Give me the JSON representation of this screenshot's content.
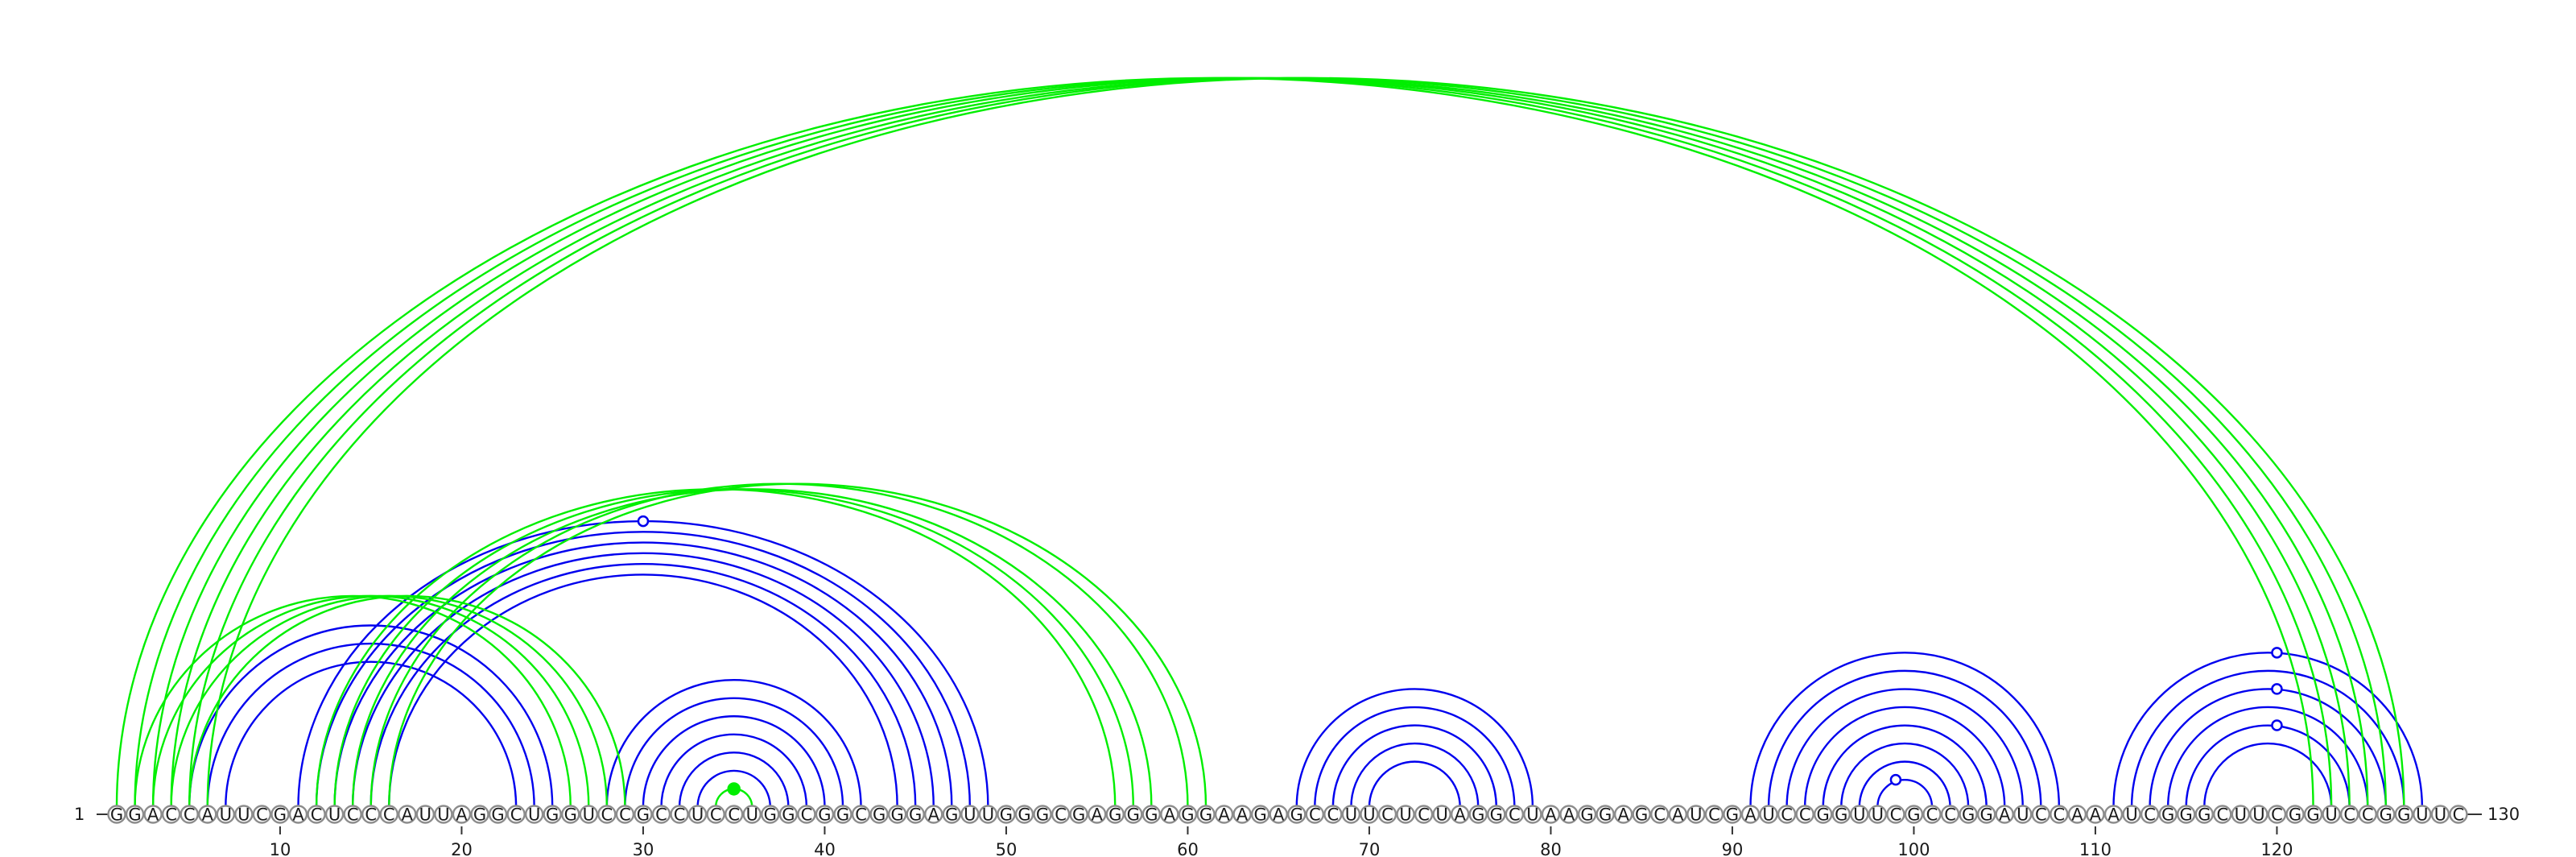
{
  "sequence": "GGACCAUUCGACUCCCAUUAGGCUGGUCCGCCUCCUGGCGGCGGGAGUUGGGCGAGGGAGGAAGAGCCUUCUCUAGGCUAAGGAGCAUCGAUCCGGUUCGCCGGAUCCAAAUCGGGCUUCGGUCCGGUUC",
  "start_label": "1",
  "end_label": "130",
  "ticks": [
    10,
    20,
    30,
    40,
    50,
    60,
    70,
    80,
    90,
    100,
    110,
    120
  ],
  "colors": {
    "blue_pairs": "#0000ee",
    "green_pairs": "#00ee00",
    "circle_stroke": "#8c8c8c"
  },
  "pairs": {
    "green": [
      [
        1,
        122
      ],
      [
        2,
        123
      ],
      [
        3,
        124
      ],
      [
        4,
        125
      ],
      [
        5,
        126
      ],
      [
        6,
        127
      ],
      [
        2,
        26
      ],
      [
        3,
        27
      ],
      [
        4,
        28
      ],
      [
        5,
        29
      ],
      [
        12,
        56
      ],
      [
        13,
        57
      ],
      [
        14,
        58
      ],
      [
        15,
        60
      ],
      [
        16,
        61
      ],
      [
        34,
        36
      ]
    ],
    "blue": [
      [
        5,
        25
      ],
      [
        6,
        24
      ],
      [
        7,
        23
      ],
      [
        11,
        49
      ],
      [
        12,
        48
      ],
      [
        13,
        47
      ],
      [
        14,
        46
      ],
      [
        15,
        45
      ],
      [
        16,
        44
      ],
      [
        28,
        42
      ],
      [
        29,
        41
      ],
      [
        30,
        40
      ],
      [
        31,
        39
      ],
      [
        32,
        38
      ],
      [
        33,
        37
      ],
      [
        66,
        79
      ],
      [
        67,
        78
      ],
      [
        68,
        77
      ],
      [
        69,
        76
      ],
      [
        70,
        75
      ],
      [
        91,
        108
      ],
      [
        92,
        107
      ],
      [
        93,
        106
      ],
      [
        94,
        105
      ],
      [
        95,
        104
      ],
      [
        96,
        103
      ],
      [
        97,
        102
      ],
      [
        98,
        101
      ],
      [
        111,
        128
      ],
      [
        112,
        127
      ],
      [
        113,
        126
      ],
      [
        114,
        125
      ],
      [
        115,
        124
      ],
      [
        116,
        123
      ]
    ]
  },
  "markers": [
    {
      "position": 30,
      "pair": [
        11,
        49
      ],
      "color": "blue"
    },
    {
      "position": 35,
      "pair": [
        34,
        36
      ],
      "color": "green"
    },
    {
      "position": 99,
      "pair": [
        98,
        101
      ],
      "color": "blue"
    },
    {
      "position": 120,
      "pair": [
        111,
        128
      ],
      "color": "blue"
    },
    {
      "position": 120,
      "pair": [
        113,
        126
      ],
      "color": "blue"
    },
    {
      "position": 120,
      "pair": [
        115,
        124
      ],
      "color": "blue"
    }
  ]
}
